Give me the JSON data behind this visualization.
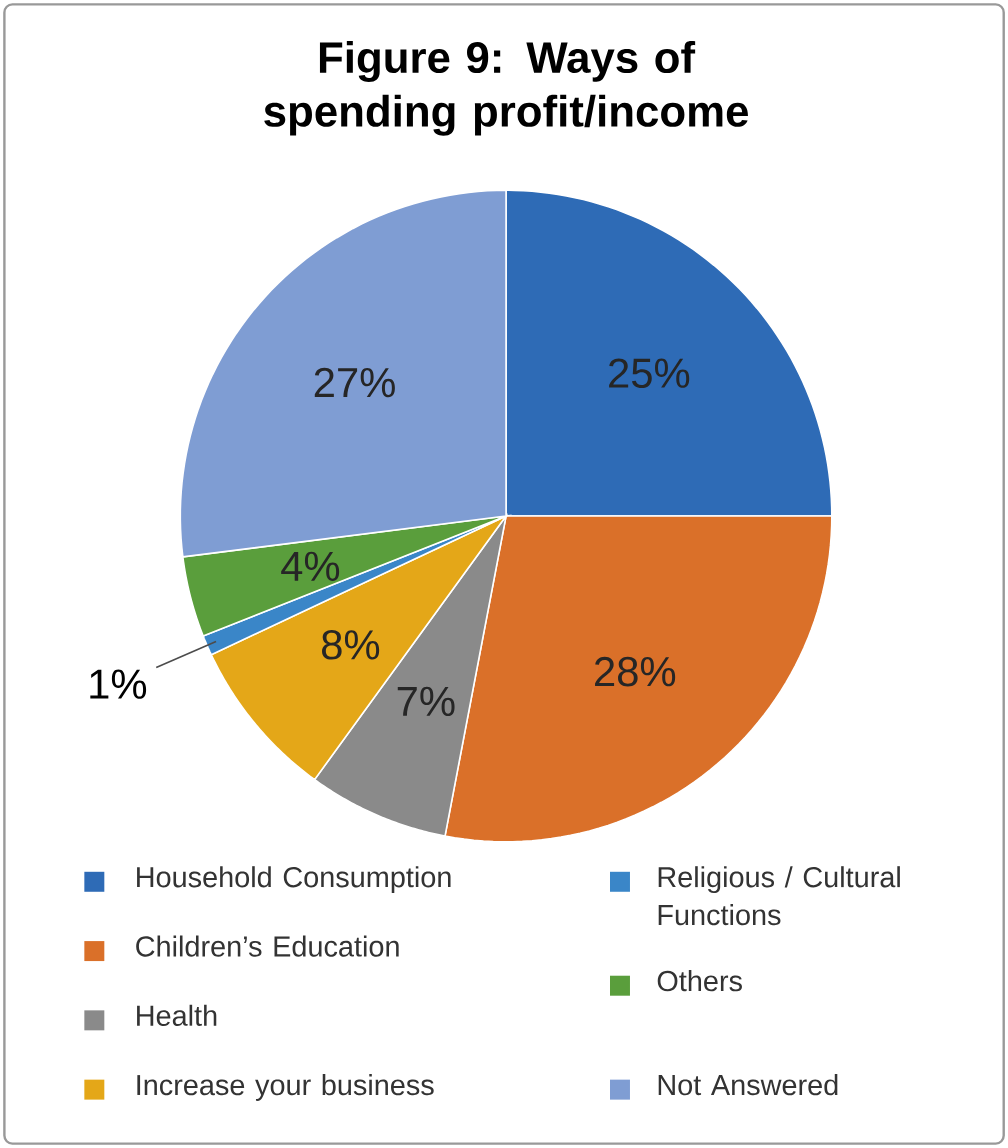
{
  "chart_data": {
    "type": "pie",
    "title": "Figure 9: Ways of spending profit/income",
    "categories": [
      "Household Consumption",
      "Children’s Education",
      "Health",
      "Increase your business",
      "Religious / Cultural Functions",
      "Others",
      "Not Answered"
    ],
    "values": [
      25,
      28,
      7,
      8,
      1,
      4,
      27
    ],
    "value_labels": [
      "25%",
      "28%",
      "7%",
      "8%",
      "1%",
      "4%",
      "27%"
    ],
    "colors": [
      "#2e6bb6",
      "#da7029",
      "#8a8a8a",
      "#e4a718",
      "#3a86c8",
      "#5a9e3c",
      "#7f9dd3"
    ],
    "legend": "bottom"
  }
}
